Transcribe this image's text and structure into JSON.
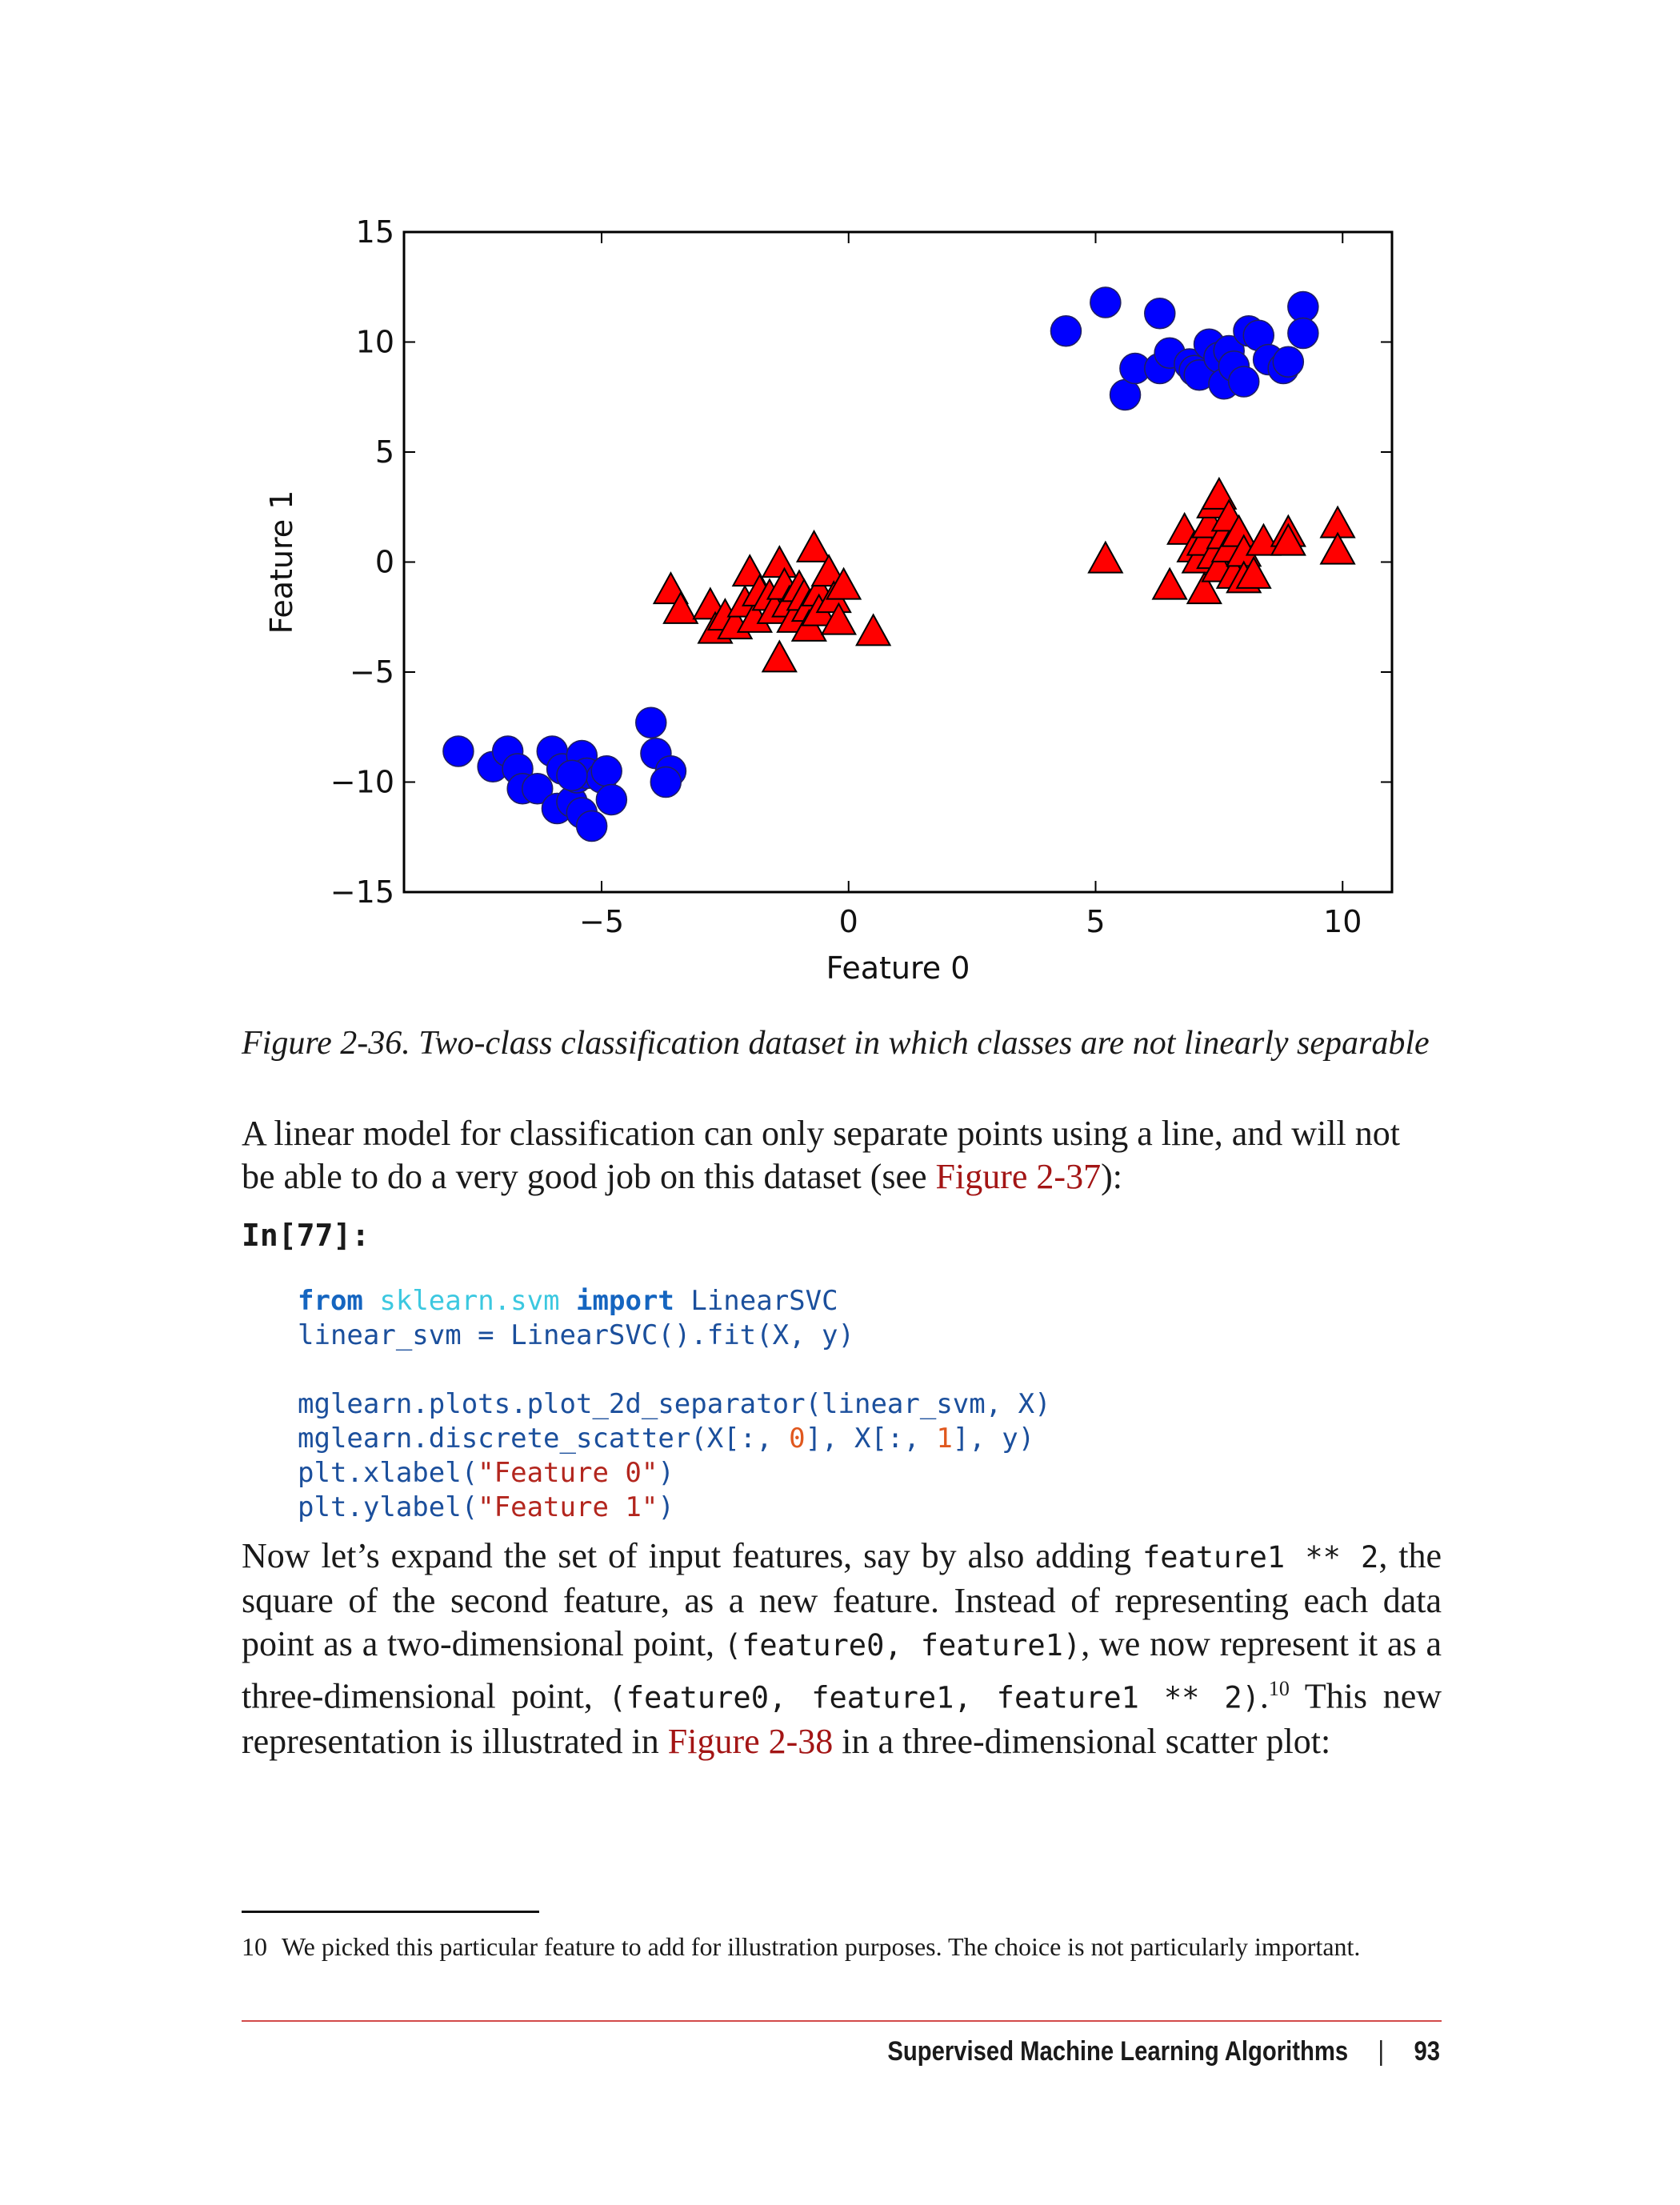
{
  "chart_data": {
    "type": "scatter",
    "xlabel": "Feature 0",
    "ylabel": "Feature 1",
    "xlim": [
      -9,
      11
    ],
    "ylim": [
      -15,
      15
    ],
    "xticks": [
      -5,
      0,
      5,
      10
    ],
    "xtick_labels": [
      "−5",
      "0",
      "5",
      "10"
    ],
    "yticks": [
      -15,
      -10,
      -5,
      0,
      5,
      10,
      15
    ],
    "ytick_labels": [
      "−15",
      "−10",
      "−5",
      "0",
      "5",
      "10",
      "15"
    ],
    "grid": false,
    "series": [
      {
        "marker": "circle",
        "color": "#0000ff",
        "points": [
          [
            -7.9,
            -8.6
          ],
          [
            -7.2,
            -9.3
          ],
          [
            -6.9,
            -8.6
          ],
          [
            -6.7,
            -9.4
          ],
          [
            -6.6,
            -10.3
          ],
          [
            -6.3,
            -10.3
          ],
          [
            -6.0,
            -8.6
          ],
          [
            -5.9,
            -11.2
          ],
          [
            -5.8,
            -9.4
          ],
          [
            -5.6,
            -10.9
          ],
          [
            -5.5,
            -9.8
          ],
          [
            -5.4,
            -8.8
          ],
          [
            -5.4,
            -11.4
          ],
          [
            -5.3,
            -9.6
          ],
          [
            -5.2,
            -12.0
          ],
          [
            -5.0,
            -9.8
          ],
          [
            -4.9,
            -9.5
          ],
          [
            -4.8,
            -10.8
          ],
          [
            -4.0,
            -7.3
          ],
          [
            -3.9,
            -8.7
          ],
          [
            -3.6,
            -9.5
          ],
          [
            -3.7,
            -10.0
          ],
          [
            -5.6,
            -9.7
          ],
          [
            4.4,
            10.5
          ],
          [
            5.2,
            11.8
          ],
          [
            5.6,
            7.6
          ],
          [
            5.8,
            8.8
          ],
          [
            6.3,
            11.3
          ],
          [
            6.3,
            8.8
          ],
          [
            6.5,
            9.5
          ],
          [
            6.9,
            9.0
          ],
          [
            7.0,
            8.7
          ],
          [
            7.1,
            8.5
          ],
          [
            7.3,
            9.9
          ],
          [
            7.5,
            9.3
          ],
          [
            7.6,
            8.1
          ],
          [
            7.7,
            9.6
          ],
          [
            7.8,
            8.9
          ],
          [
            8.0,
            8.2
          ],
          [
            8.1,
            10.5
          ],
          [
            8.3,
            10.3
          ],
          [
            8.5,
            9.2
          ],
          [
            8.8,
            8.8
          ],
          [
            8.9,
            9.1
          ],
          [
            9.2,
            11.6
          ],
          [
            9.2,
            10.4
          ]
        ]
      },
      {
        "marker": "triangle",
        "color": "#ff0000",
        "points": [
          [
            -3.6,
            -1.3
          ],
          [
            -3.4,
            -2.2
          ],
          [
            -2.8,
            -2.0
          ],
          [
            -2.7,
            -3.1
          ],
          [
            -2.5,
            -2.5
          ],
          [
            -2.3,
            -2.9
          ],
          [
            -2.1,
            -1.9
          ],
          [
            -2.0,
            -0.5
          ],
          [
            -1.9,
            -2.6
          ],
          [
            -1.8,
            -1.4
          ],
          [
            -1.6,
            -1.6
          ],
          [
            -1.5,
            -2.2
          ],
          [
            -1.4,
            -0.1
          ],
          [
            -1.4,
            -4.4
          ],
          [
            -1.3,
            -1.1
          ],
          [
            -1.2,
            -1.9
          ],
          [
            -1.1,
            -2.6
          ],
          [
            -1.0,
            -1.2
          ],
          [
            -0.9,
            -1.6
          ],
          [
            -0.8,
            -2.1
          ],
          [
            -0.8,
            -3.0
          ],
          [
            -0.7,
            0.6
          ],
          [
            -0.6,
            -1.4
          ],
          [
            -0.6,
            -2.3
          ],
          [
            -0.4,
            -0.5
          ],
          [
            -0.3,
            -1.7
          ],
          [
            -0.2,
            -2.7
          ],
          [
            -0.1,
            -1.1
          ],
          [
            0.5,
            -3.2
          ],
          [
            5.2,
            0.1
          ],
          [
            6.5,
            -1.1
          ],
          [
            6.8,
            1.4
          ],
          [
            7.0,
            0.6
          ],
          [
            7.1,
            0.1
          ],
          [
            7.2,
            -1.3
          ],
          [
            7.2,
            0.9
          ],
          [
            7.3,
            1.7
          ],
          [
            7.4,
            2.6
          ],
          [
            7.4,
            0.3
          ],
          [
            7.5,
            -0.3
          ],
          [
            7.5,
            3.0
          ],
          [
            7.6,
            1.2
          ],
          [
            7.7,
            0.6
          ],
          [
            7.7,
            2.0
          ],
          [
            7.8,
            -0.6
          ],
          [
            7.9,
            1.3
          ],
          [
            8.0,
            0.4
          ],
          [
            8.0,
            -0.8
          ],
          [
            8.2,
            -0.6
          ],
          [
            8.4,
            0.9
          ],
          [
            8.9,
            1.3
          ],
          [
            8.9,
            0.9
          ],
          [
            9.9,
            1.7
          ],
          [
            9.9,
            0.5
          ]
        ]
      }
    ]
  },
  "figure": {
    "caption": "Figure 2-36. Two-class classification dataset in which classes are not linearly separable"
  },
  "para1": {
    "text_a": "A linear model for classification can only separate points using a line, and will not be able to do a very good job on this dataset (see ",
    "ref": "Figure 2-37",
    "text_b": "):"
  },
  "cell_label": "In[77]:",
  "code": {
    "l1_from": "from",
    "l1_module": "sklearn.svm",
    "l1_import": "import",
    "l1_name": "LinearSVC",
    "l2_a": "linear_svm = LinearSVC().fit(X, y)",
    "l4_a": "mglearn.plots.plot_2d_separator(linear_svm, X)",
    "l5_a": "mglearn.discrete_scatter(X[:, ",
    "l5_n1": "0",
    "l5_b": "], X[:, ",
    "l5_n2": "1",
    "l5_c": "], y)",
    "l6_a": "plt.xlabel(",
    "l6_s": "\"Feature 0\"",
    "l6_b": ")",
    "l7_a": "plt.ylabel(",
    "l7_s": "\"Feature 1\"",
    "l7_b": ")"
  },
  "para2": {
    "t1": "Now let’s expand the set of input features, say by also adding ",
    "c1": "feature1 ** 2",
    "t2": ", the square of the second feature, as a new feature. Instead of representing each data point as a two-dimensional point, ",
    "c2": "(feature0, feature1)",
    "t3": ", we now represent it as a three-dimensional point, ",
    "c3": "(feature0, feature1, feature1 ** 2)",
    "t4": ".",
    "sup": "10",
    "t5": " This new representa­tion is illustrated in ",
    "ref": "Figure 2-38",
    "t6": " in a three-dimensional scatter plot:"
  },
  "footnote": {
    "number": "10",
    "text": "We picked this particular feature to add for illustration purposes. The choice is not particularly important."
  },
  "running_footer": {
    "section": "Supervised Machine Learning Algorithms",
    "separator": "|",
    "page": "93"
  }
}
